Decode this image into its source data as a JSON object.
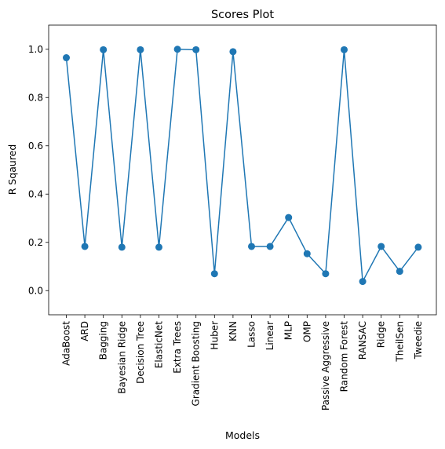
{
  "chart_data": {
    "type": "line",
    "title": "Scores Plot",
    "xlabel": "Models",
    "ylabel": "R Sqaured",
    "ylim": [
      -0.1,
      1.1
    ],
    "yticks": [
      0.0,
      0.2,
      0.4,
      0.6,
      0.8,
      1.0
    ],
    "ytick_labels": [
      "0.0",
      "0.2",
      "0.4",
      "0.6",
      "0.8",
      "1.0"
    ],
    "grid": false,
    "legend": "none",
    "categories": [
      "AdaBoost",
      "ARD",
      "Bagging",
      "Bayesian Ridge",
      "Decision Tree",
      "ElasticNet",
      "Extra Trees",
      "Gradient Boosting",
      "Huber",
      "KNN",
      "Lasso",
      "Linear",
      "MLP",
      "OMP",
      "Passive Aggressive",
      "Random Forest",
      "RANSAC",
      "Ridge",
      "TheilSen",
      "Tweedie"
    ],
    "series": [
      {
        "values": [
          0.965,
          0.183,
          0.998,
          0.18,
          0.998,
          0.18,
          1.0,
          0.998,
          0.07,
          0.99,
          0.183,
          0.183,
          0.303,
          0.153,
          0.07,
          0.998,
          0.038,
          0.183,
          0.08,
          0.18
        ],
        "color": "#1f77b4"
      }
    ]
  }
}
